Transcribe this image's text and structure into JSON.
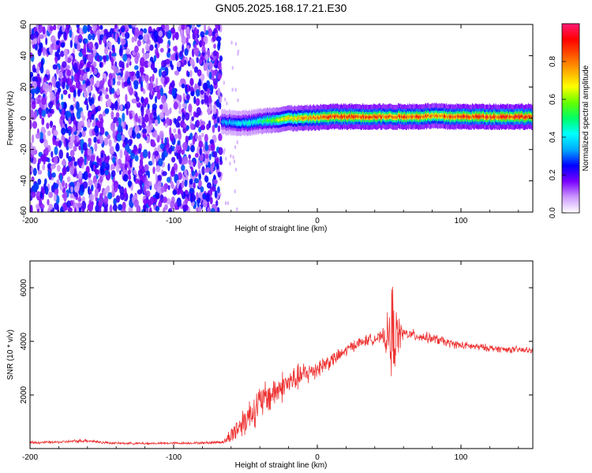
{
  "title": "GN05.2025.168.17.21.E30",
  "chart_data": [
    {
      "type": "heatmap",
      "xlabel": "Height of straight line (km)",
      "ylabel": "Frequency (Hz)",
      "xlim": [
        -200,
        150
      ],
      "ylim": [
        -60,
        60
      ],
      "xticks": [
        -200,
        -100,
        0,
        100
      ],
      "xtick_labels": [
        "-200",
        "-100",
        "0",
        "100"
      ],
      "yticks": [
        -60,
        -40,
        -20,
        0,
        20,
        40,
        60
      ],
      "ytick_labels": [
        "-60",
        "-40",
        "-20",
        "0",
        "20",
        "40",
        "60"
      ],
      "colorbar": {
        "label": "Normalized spectral amplitude",
        "range": [
          0,
          1
        ],
        "ticks": [
          0.0,
          0.2,
          0.4,
          0.6,
          0.8
        ],
        "tick_labels": [
          "0.0",
          "0.2",
          "0.4",
          "0.6",
          "0.8"
        ],
        "colors": [
          "#ffffff",
          "#cc99ff",
          "#7a00ff",
          "#0000ff",
          "#00aaff",
          "#00ffff",
          "#00ff66",
          "#66ff00",
          "#ffff00",
          "#ffaa00",
          "#ff5500",
          "#ff0000",
          "#ff1a75"
        ]
      },
      "noise_region_x": [
        -200,
        -67
      ],
      "signal_band": {
        "x": [
          -67,
          -60,
          -50,
          -40,
          -30,
          -20,
          -10,
          0,
          10,
          20,
          30,
          40,
          50,
          60,
          70,
          80,
          90,
          100,
          110,
          120,
          130,
          140,
          150
        ],
        "center_freq": [
          -2,
          -3,
          -3,
          -2,
          -1,
          0,
          0,
          0.5,
          1,
          1,
          1,
          1,
          1,
          1,
          1,
          1.5,
          1,
          1,
          1,
          1,
          1,
          1,
          1
        ],
        "amplitude": [
          0.35,
          0.4,
          0.45,
          0.5,
          0.6,
          0.75,
          0.8,
          0.85,
          0.9,
          0.9,
          0.9,
          0.9,
          0.85,
          0.9,
          0.9,
          0.85,
          0.9,
          0.9,
          0.92,
          0.92,
          0.92,
          0.92,
          0.92
        ]
      }
    },
    {
      "type": "line",
      "xlabel": "Height of straight line (km)",
      "ylabel": "SNR (10 * v/v)",
      "xlim": [
        -200,
        150
      ],
      "ylim": [
        0,
        7000
      ],
      "xticks": [
        -200,
        -100,
        0,
        100
      ],
      "xtick_labels": [
        "-200",
        "-100",
        "0",
        "100"
      ],
      "yticks": [
        2000,
        4000,
        6000
      ],
      "ytick_labels": [
        "2000",
        "4000",
        "6000"
      ],
      "color": "#ee3333",
      "series": [
        {
          "x": [
            -200,
            -180,
            -160,
            -150,
            -140,
            -120,
            -100,
            -80,
            -65,
            -60,
            -55,
            -50,
            -45,
            -40,
            -35,
            -30,
            -25,
            -20,
            -15,
            -10,
            -5,
            0,
            5,
            10,
            15,
            20,
            25,
            30,
            35,
            40,
            45,
            50,
            52,
            55,
            60,
            65,
            70,
            75,
            80,
            85,
            90,
            95,
            100,
            110,
            120,
            130,
            140,
            150
          ],
          "values": [
            220,
            240,
            300,
            230,
            200,
            190,
            200,
            210,
            250,
            500,
            800,
            1100,
            1400,
            1700,
            1900,
            2100,
            2300,
            2450,
            2600,
            2750,
            2850,
            3000,
            3150,
            3300,
            3450,
            3650,
            3850,
            3950,
            4050,
            4100,
            4150,
            4150,
            4200,
            4250,
            4300,
            4250,
            4200,
            4150,
            4100,
            4050,
            3950,
            3900,
            3850,
            3800,
            3750,
            3700,
            3680,
            3650
          ],
          "noise_amplitude": [
            60,
            60,
            80,
            60,
            50,
            50,
            50,
            50,
            80,
            400,
            600,
            700,
            800,
            800,
            800,
            700,
            700,
            600,
            600,
            550,
            500,
            450,
            400,
            350,
            300,
            280,
            260,
            250,
            250,
            250,
            250,
            1200,
            2600,
            1200,
            250,
            250,
            250,
            240,
            230,
            220,
            200,
            190,
            180,
            170,
            160,
            150,
            150,
            150
          ]
        }
      ]
    }
  ]
}
